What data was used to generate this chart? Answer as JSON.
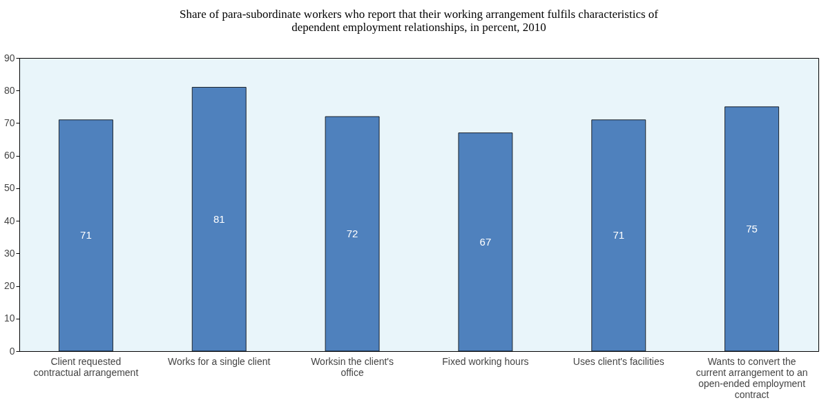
{
  "chart_data": {
    "type": "bar",
    "title": [
      "Share of para-subordinate workers who report that their working arrangement fulfils characteristics of",
      "dependent employment relationships, in percent, 2010"
    ],
    "categories": [
      "Client requested contractual arrangement",
      "Works for a single client",
      "Worksin the client's office",
      "Fixed working hours",
      "Uses client's facilities",
      "Wants to convert the current arrangement to an open-ended employment contract"
    ],
    "values": [
      71,
      81,
      72,
      67,
      71,
      75
    ],
    "color": "#4f81bd",
    "ylim": [
      0,
      90
    ],
    "yticks": [
      0,
      10,
      20,
      30,
      40,
      50,
      60,
      70,
      80,
      90
    ],
    "data_labels": true,
    "grid": false
  }
}
